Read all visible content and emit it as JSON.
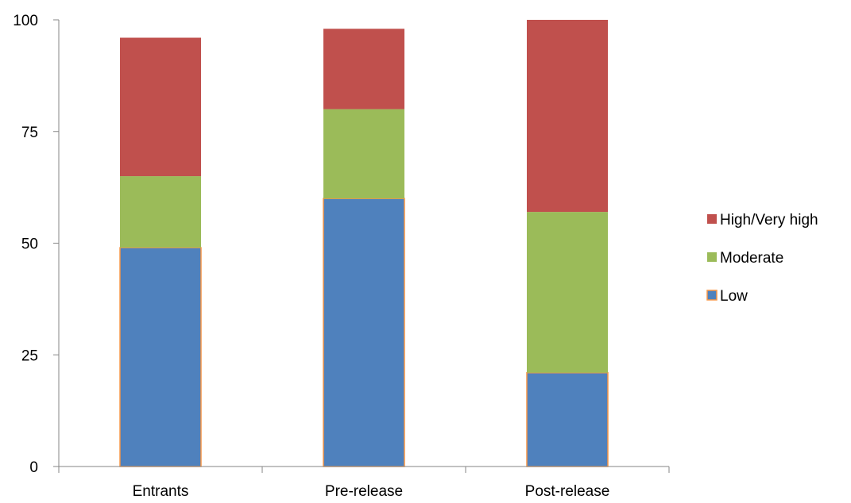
{
  "chart_data": {
    "type": "bar",
    "stacked": true,
    "categories": [
      "Entrants",
      "Pre-release",
      "Post-release"
    ],
    "series": [
      {
        "name": "Low",
        "values": [
          49,
          60,
          21
        ],
        "color": "#4f81bd",
        "stroke": "#f79646"
      },
      {
        "name": "Moderate",
        "values": [
          16,
          20,
          36
        ],
        "color": "#9bbb59"
      },
      {
        "name": "High/Very high",
        "values": [
          31,
          18,
          43
        ],
        "color": "#c0504d"
      }
    ],
    "ylim": [
      0,
      100
    ],
    "yticks": [
      0,
      25,
      50,
      75,
      100
    ],
    "title": "",
    "xlabel": "",
    "ylabel": "",
    "grid": false,
    "legend_position": "right",
    "legend_order": [
      "High/Very high",
      "Moderate",
      "Low"
    ]
  }
}
